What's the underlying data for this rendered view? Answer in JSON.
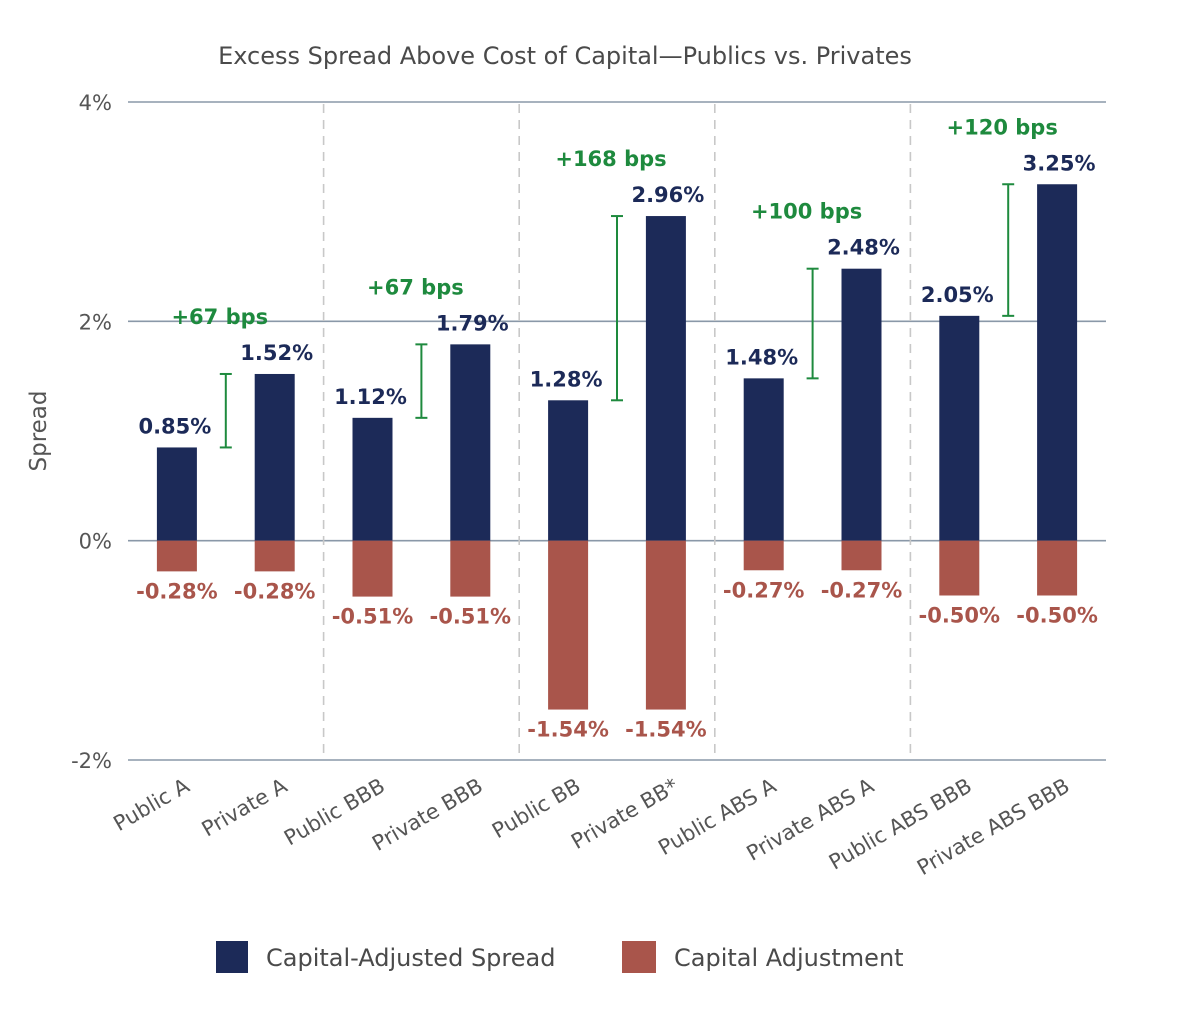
{
  "chart_data": {
    "type": "bar",
    "title": "Excess Spread Above Cost of Capital—Publics vs. Privates",
    "ylabel": "Spread",
    "xlabel": "",
    "ylim": [
      -2,
      4
    ],
    "y_ticks": [
      {
        "value": 4,
        "label": "4%"
      },
      {
        "value": 2,
        "label": "2%"
      },
      {
        "value": 0,
        "label": "0%"
      },
      {
        "value": -2,
        "label": "-2%"
      }
    ],
    "grid": true,
    "legend_position": "bottom",
    "categories": [
      "Public A",
      "Private A",
      "Public BBB",
      "Private BBB",
      "Public BB",
      "Private BB*",
      "Public ABS A",
      "Private ABS A",
      "Public ABS BBB",
      "Private ABS BBB"
    ],
    "series": [
      {
        "name": "Capital-Adjusted Spread",
        "color": "#1c2a58",
        "values": [
          0.85,
          1.52,
          1.12,
          1.79,
          1.28,
          2.96,
          1.48,
          2.48,
          2.05,
          3.25
        ],
        "labels": [
          "0.85%",
          "1.52%",
          "1.12%",
          "1.79%",
          "1.28%",
          "2.96%",
          "1.48%",
          "2.48%",
          "2.05%",
          "3.25%"
        ]
      },
      {
        "name": "Capital Adjustment",
        "color": "#a9554b",
        "values": [
          -0.28,
          -0.28,
          -0.51,
          -0.51,
          -1.54,
          -1.54,
          -0.27,
          -0.27,
          -0.5,
          -0.5
        ],
        "labels": [
          "-0.28%",
          "-0.28%",
          "-0.51%",
          "-0.51%",
          "-1.54%",
          "-1.54%",
          "-0.27%",
          "-0.27%",
          "-0.50%",
          "-0.50%"
        ]
      }
    ],
    "annotations": [
      {
        "text": "+67 bps",
        "from": 0.85,
        "to": 1.52,
        "group": 0
      },
      {
        "text": "+67 bps",
        "from": 1.12,
        "to": 1.79,
        "group": 1
      },
      {
        "text": "+168 bps",
        "from": 1.28,
        "to": 2.96,
        "group": 2
      },
      {
        "text": "+100 bps",
        "from": 1.48,
        "to": 2.48,
        "group": 3
      },
      {
        "text": "+120 bps",
        "from": 2.05,
        "to": 3.25,
        "group": 4
      }
    ],
    "annotation_color": "#1e8a3e",
    "grid_color": "#8a98a8",
    "separator_color": "#c8c8c8",
    "positive_label_color": "#1c2a58",
    "negative_label_color": "#a9554b"
  }
}
